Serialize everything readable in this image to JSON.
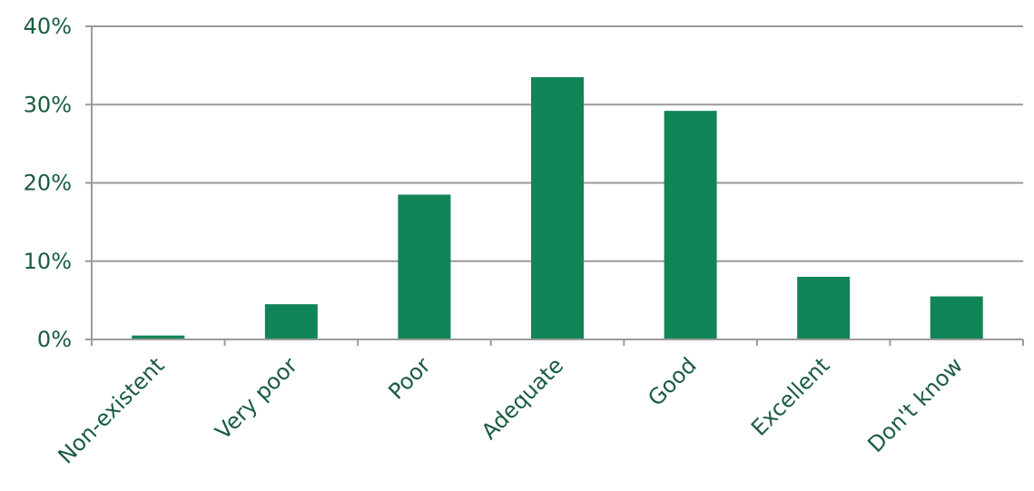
{
  "chart_data": {
    "type": "bar",
    "categories": [
      "Non-existent",
      "Very poor",
      "Poor",
      "Adequate",
      "Good",
      "Excellent",
      "Don't know"
    ],
    "values": [
      0.5,
      4.5,
      18.5,
      33.5,
      29.2,
      8.0,
      5.5
    ],
    "yticks": [
      "0%",
      "10%",
      "20%",
      "30%",
      "40%"
    ],
    "ylim": [
      0,
      40
    ],
    "grid": true,
    "legend": "none"
  },
  "colors": {
    "bar": "#118558",
    "axis_text": "#1a5c3f",
    "grid": "#9a9a9a"
  }
}
